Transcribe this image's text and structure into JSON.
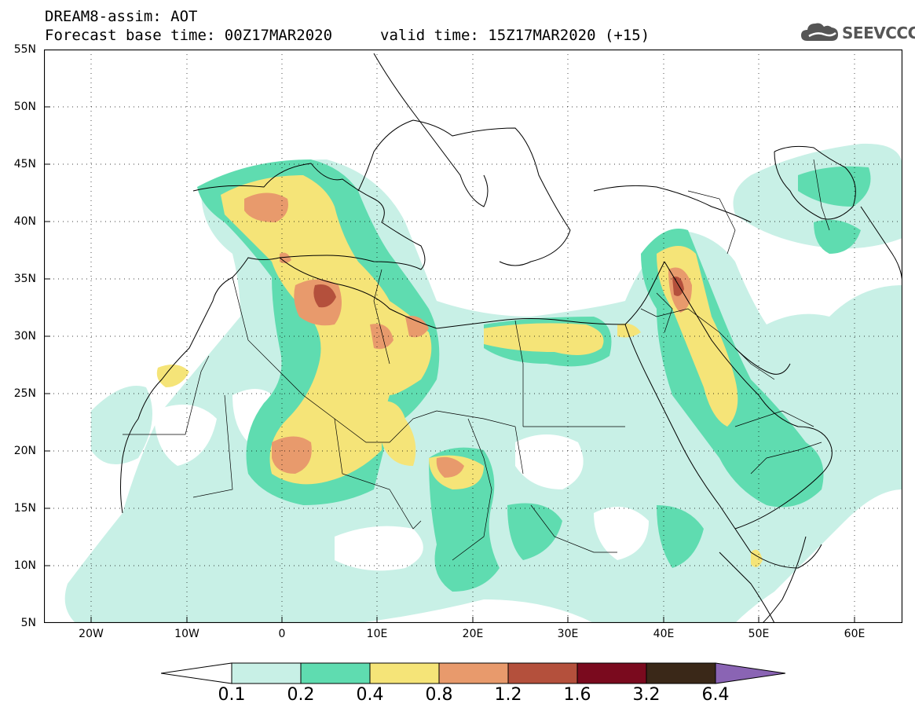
{
  "title": {
    "line1": "DREAM8-assim: AOT",
    "line2": "Forecast base time: 00Z17MAR2020",
    "valid": "valid time: 15Z17MAR2020 (+15)"
  },
  "logo": {
    "text": "SEEVCCC",
    "icon": "cloud-icon"
  },
  "map": {
    "lon_range": [
      -25,
      65
    ],
    "lat_range": [
      5,
      55
    ],
    "y_ticks": [
      "55N",
      "50N",
      "45N",
      "40N",
      "35N",
      "30N",
      "25N",
      "20N",
      "15N",
      "10N",
      "5N"
    ],
    "x_ticks": [
      "20W",
      "10W",
      "0",
      "10E",
      "20E",
      "30E",
      "40E",
      "50E",
      "60E"
    ],
    "gridlines": true
  },
  "colorbar": {
    "levels": [
      "0.1",
      "0.2",
      "0.4",
      "0.8",
      "1.2",
      "1.6",
      "3.2",
      "6.4"
    ],
    "colors": [
      "#ffffff",
      "#c8f0e6",
      "#5fdcb0",
      "#f5e478",
      "#e89a6c",
      "#b4503c",
      "#7a0a1e",
      "#3a2818",
      "#8a64b4"
    ]
  }
}
